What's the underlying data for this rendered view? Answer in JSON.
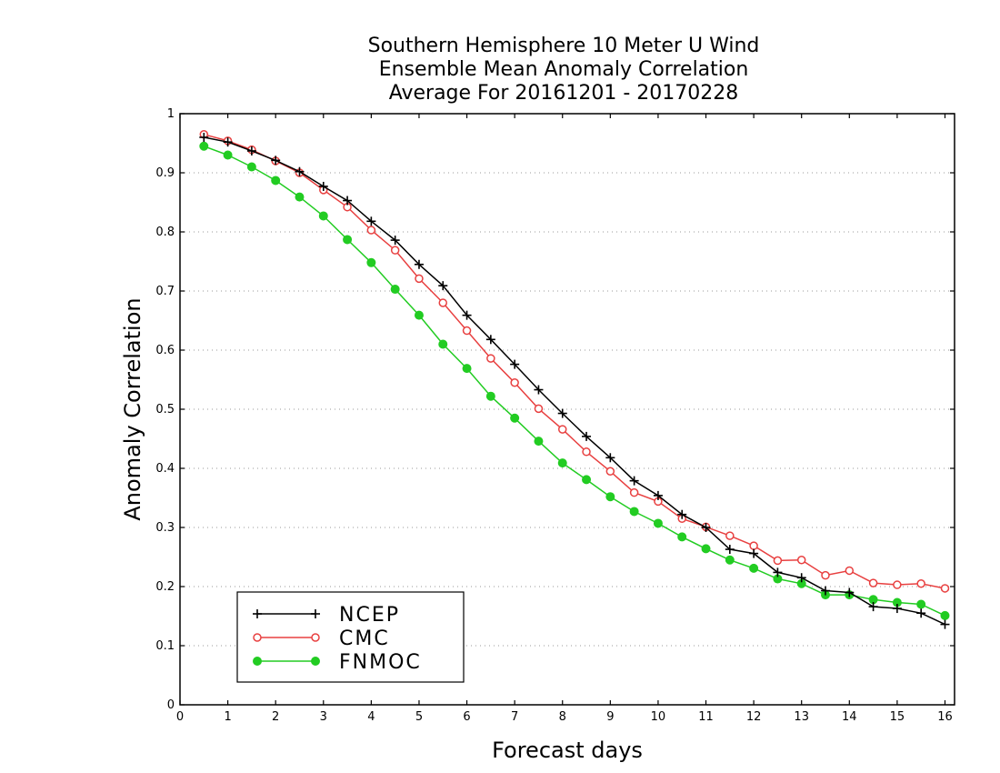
{
  "chart_data": {
    "type": "line",
    "title_lines": [
      "Southern Hemisphere 10 Meter U Wind",
      "Ensemble Mean Anomaly Correlation",
      "Average For 20161201 - 20170228"
    ],
    "xlabel": "Forecast days",
    "ylabel": "Anomaly Correlation",
    "xlim": [
      0,
      16.2
    ],
    "ylim": [
      0,
      1
    ],
    "x_ticks": [
      0,
      1,
      2,
      3,
      4,
      5,
      6,
      7,
      8,
      9,
      10,
      11,
      12,
      13,
      14,
      15,
      16
    ],
    "y_ticks": [
      0,
      0.1,
      0.2,
      0.3,
      0.4,
      0.5,
      0.6,
      0.7,
      0.8,
      0.9,
      1
    ],
    "y_tick_labels": [
      "0",
      "0.1",
      "0.2",
      "0.3",
      "0.4",
      "0.5",
      "0.6",
      "0.7",
      "0.8",
      "0.9",
      "1"
    ],
    "grid": "horizontal-dotted",
    "legend_position": "bottom-left",
    "x": [
      0.5,
      1,
      1.5,
      2,
      2.5,
      3,
      3.5,
      4,
      4.5,
      5,
      5.5,
      6,
      6.5,
      7,
      7.5,
      8,
      8.5,
      9,
      9.5,
      10,
      10.5,
      11,
      11.5,
      12,
      12.5,
      13,
      13.5,
      14,
      14.5,
      15,
      15.5,
      16
    ],
    "series": [
      {
        "name": "NCEP",
        "color": "#000000",
        "marker": "plus",
        "values": [
          0.96,
          0.952,
          0.937,
          0.921,
          0.902,
          0.877,
          0.853,
          0.818,
          0.786,
          0.745,
          0.709,
          0.659,
          0.618,
          0.576,
          0.533,
          0.493,
          0.454,
          0.418,
          0.379,
          0.354,
          0.322,
          0.3,
          0.263,
          0.256,
          0.224,
          0.215,
          0.193,
          0.19,
          0.166,
          0.163,
          0.155,
          0.136
        ]
      },
      {
        "name": "CMC",
        "color": "#e84040",
        "marker": "open-circle",
        "values": [
          0.965,
          0.954,
          0.939,
          0.92,
          0.9,
          0.871,
          0.842,
          0.803,
          0.769,
          0.721,
          0.68,
          0.633,
          0.586,
          0.545,
          0.501,
          0.466,
          0.428,
          0.395,
          0.359,
          0.344,
          0.315,
          0.301,
          0.286,
          0.269,
          0.244,
          0.245,
          0.219,
          0.227,
          0.206,
          0.203,
          0.205,
          0.197
        ]
      },
      {
        "name": "FNMOC",
        "color": "#22cc22",
        "marker": "filled-circle",
        "values": [
          0.945,
          0.93,
          0.91,
          0.887,
          0.859,
          0.827,
          0.787,
          0.748,
          0.703,
          0.659,
          0.61,
          0.569,
          0.522,
          0.485,
          0.446,
          0.409,
          0.381,
          0.352,
          0.327,
          0.307,
          0.284,
          0.264,
          0.245,
          0.231,
          0.213,
          0.205,
          0.186,
          0.186,
          0.178,
          0.173,
          0.17,
          0.151
        ]
      }
    ]
  }
}
